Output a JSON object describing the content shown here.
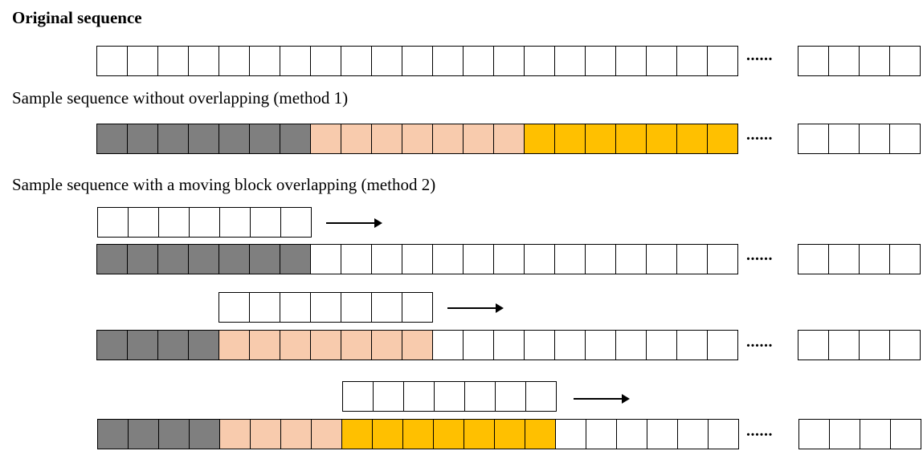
{
  "colors": {
    "empty": "#ffffff",
    "gray": "#7f7f7f",
    "peach": "#f8cbad",
    "gold": "#ffc000"
  },
  "headings": {
    "original": "Original sequence",
    "method1": "Sample sequence without overlapping (method 1)",
    "method2": "Sample sequence with a moving block overlapping (method 2)"
  },
  "ellipsis": "......",
  "rows": {
    "original": {
      "cells": [
        "empty",
        "empty",
        "empty",
        "empty",
        "empty",
        "empty",
        "empty",
        "empty",
        "empty",
        "empty",
        "empty",
        "empty",
        "empty",
        "empty",
        "empty",
        "empty",
        "empty",
        "empty",
        "empty",
        "empty",
        "empty"
      ],
      "tail": 4
    },
    "method1": {
      "cells": [
        "gray",
        "gray",
        "gray",
        "gray",
        "gray",
        "gray",
        "gray",
        "peach",
        "peach",
        "peach",
        "peach",
        "peach",
        "peach",
        "peach",
        "gold",
        "gold",
        "gold",
        "gold",
        "gold",
        "gold",
        "gold"
      ],
      "tail": 4
    },
    "method2_step1_window": {
      "cells": [
        "empty",
        "empty",
        "empty",
        "empty",
        "empty",
        "empty",
        "empty"
      ]
    },
    "method2_step1": {
      "cells": [
        "gray",
        "gray",
        "gray",
        "gray",
        "gray",
        "gray",
        "gray",
        "empty",
        "empty",
        "empty",
        "empty",
        "empty",
        "empty",
        "empty",
        "empty",
        "empty",
        "empty",
        "empty",
        "empty",
        "empty",
        "empty"
      ],
      "tail": 4
    },
    "method2_step2_window": {
      "cells": [
        "empty",
        "empty",
        "empty",
        "empty",
        "empty",
        "empty",
        "empty"
      ]
    },
    "method2_step2": {
      "cells": [
        "gray",
        "gray",
        "gray",
        "gray",
        "peach",
        "peach",
        "peach",
        "peach",
        "peach",
        "peach",
        "peach",
        "empty",
        "empty",
        "empty",
        "empty",
        "empty",
        "empty",
        "empty",
        "empty",
        "empty",
        "empty"
      ],
      "tail": 4
    },
    "method2_step3_window": {
      "cells": [
        "empty",
        "empty",
        "empty",
        "empty",
        "empty",
        "empty",
        "empty"
      ]
    },
    "method2_step3": {
      "cells": [
        "gray",
        "gray",
        "gray",
        "gray",
        "peach",
        "peach",
        "peach",
        "peach",
        "gold",
        "gold",
        "gold",
        "gold",
        "gold",
        "gold",
        "gold",
        "empty",
        "empty",
        "empty",
        "empty",
        "empty",
        "empty"
      ],
      "tail": 4
    }
  }
}
